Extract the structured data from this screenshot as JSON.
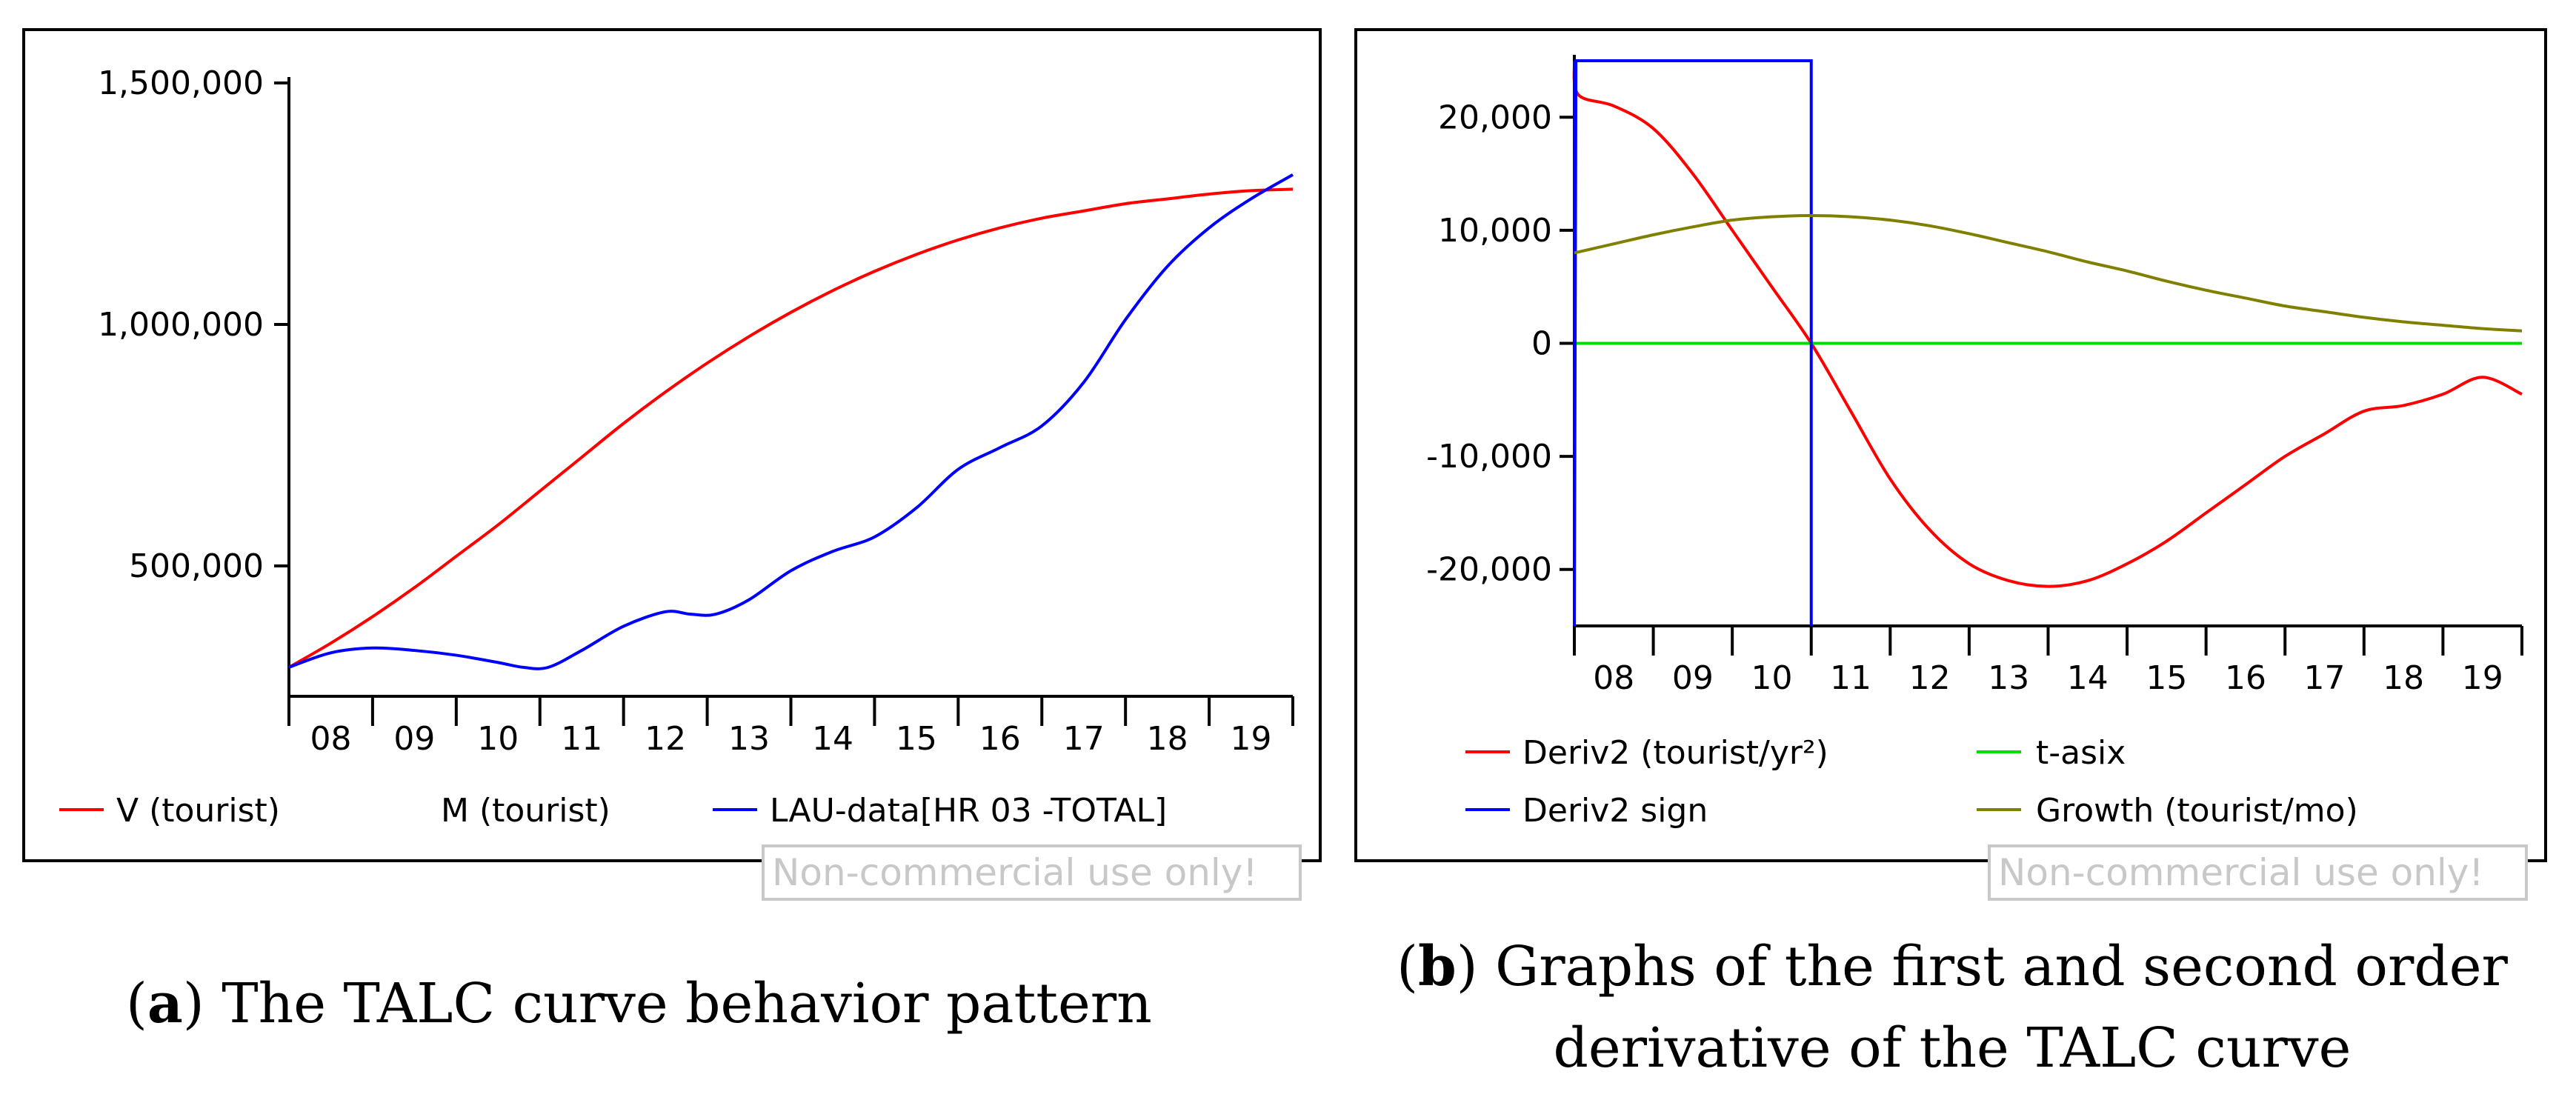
{
  "watermark": "Non-commercial use only!",
  "colors": {
    "red": "#ff0000",
    "blue": "#0000ff",
    "green": "#00dd00",
    "olive": "#808000"
  },
  "chart_data": [
    {
      "id": "a",
      "type": "line",
      "caption": {
        "letter": "a",
        "text": ") The TALC curve behavior pattern",
        "open": "("
      },
      "x_range": [
        2007.5,
        2019.5
      ],
      "ylim": [
        230000,
        1500000
      ],
      "xticks": [
        {
          "label": "08",
          "x": 2008
        },
        {
          "label": "09",
          "x": 2009
        },
        {
          "label": "10",
          "x": 2010
        },
        {
          "label": "11",
          "x": 2011
        },
        {
          "label": "12",
          "x": 2012
        },
        {
          "label": "13",
          "x": 2013
        },
        {
          "label": "14",
          "x": 2014
        },
        {
          "label": "15",
          "x": 2015
        },
        {
          "label": "16",
          "x": 2016
        },
        {
          "label": "17",
          "x": 2017
        },
        {
          "label": "18",
          "x": 2018
        },
        {
          "label": "19",
          "x": 2019
        }
      ],
      "yticks": [
        {
          "label": "500,000",
          "y": 500000
        },
        {
          "label": "1,000,000",
          "y": 1000000
        },
        {
          "label": "1,500,000",
          "y": 1500000
        }
      ],
      "series": [
        {
          "name": "V (tourist)",
          "color": "#ff0000",
          "x": [
            2007.5,
            2008,
            2008.5,
            2009,
            2009.5,
            2010,
            2010.5,
            2011,
            2011.5,
            2012,
            2012.5,
            2013,
            2013.5,
            2014,
            2014.5,
            2015,
            2015.5,
            2016,
            2016.5,
            2017,
            2017.5,
            2018,
            2018.5,
            2019,
            2019.5
          ],
          "y": [
            290000,
            340000,
            395000,
            455000,
            520000,
            585000,
            655000,
            725000,
            795000,
            860000,
            920000,
            975000,
            1025000,
            1070000,
            1110000,
            1145000,
            1175000,
            1200000,
            1220000,
            1235000,
            1250000,
            1260000,
            1270000,
            1277000,
            1280000
          ]
        },
        {
          "name": "M (tourist)",
          "color": "#ffffff",
          "x": [],
          "y": []
        },
        {
          "name": "LAU-data[HR 03 -TOTAL]",
          "color": "#0000ff",
          "x": [
            2007.5,
            2008,
            2008.5,
            2009,
            2009.5,
            2010,
            2010.3,
            2010.6,
            2011,
            2011.5,
            2012,
            2012.3,
            2012.6,
            2013,
            2013.5,
            2014,
            2014.5,
            2015,
            2015.5,
            2016,
            2016.5,
            2017,
            2017.5,
            2018,
            2018.5,
            2019,
            2019.5
          ],
          "y": [
            290000,
            320000,
            330000,
            325000,
            315000,
            300000,
            290000,
            290000,
            325000,
            375000,
            405000,
            400000,
            400000,
            430000,
            490000,
            530000,
            560000,
            620000,
            700000,
            745000,
            790000,
            880000,
            1010000,
            1120000,
            1200000,
            1260000,
            1310000
          ]
        }
      ]
    },
    {
      "id": "b",
      "type": "line",
      "caption": {
        "open": "(",
        "letter": "b",
        "line1": ") Graphs of the first and second order",
        "line2": "derivative of the TALC curve"
      },
      "x_range": [
        2007.5,
        2019.5
      ],
      "ylim": [
        -25000,
        25000
      ],
      "xticks": [
        {
          "label": "08",
          "x": 2008
        },
        {
          "label": "09",
          "x": 2009
        },
        {
          "label": "10",
          "x": 2010
        },
        {
          "label": "11",
          "x": 2011
        },
        {
          "label": "12",
          "x": 2012
        },
        {
          "label": "13",
          "x": 2013
        },
        {
          "label": "14",
          "x": 2014
        },
        {
          "label": "15",
          "x": 2015
        },
        {
          "label": "16",
          "x": 2016
        },
        {
          "label": "17",
          "x": 2017
        },
        {
          "label": "18",
          "x": 2018
        },
        {
          "label": "19",
          "x": 2019
        }
      ],
      "yticks": [
        {
          "label": "20,000",
          "y": 20000
        },
        {
          "label": "10,000",
          "y": 10000
        },
        {
          "label": "0",
          "y": 0
        },
        {
          "label": "-10,000",
          "y": -10000
        },
        {
          "label": "-20,000",
          "y": -20000
        }
      ],
      "series": [
        {
          "name": "Deriv2 (tourist/yr²)",
          "color": "#ff0000",
          "x": [
            2007.5,
            2007.55,
            2008,
            2008.5,
            2009,
            2009.5,
            2010,
            2010.5,
            2011,
            2011.5,
            2012,
            2012.5,
            2013,
            2013.5,
            2014,
            2014.5,
            2015,
            2015.5,
            2016,
            2016.5,
            2017,
            2017.5,
            2018,
            2018.5,
            2019,
            2019.5
          ],
          "y": [
            25000,
            22000,
            21000,
            19000,
            15000,
            10000,
            5000,
            0,
            -6000,
            -12000,
            -16500,
            -19500,
            -21000,
            -21500,
            -21000,
            -19500,
            -17500,
            -15000,
            -12500,
            -10000,
            -8000,
            -6000,
            -5500,
            -4500,
            -3000,
            -4500
          ]
        },
        {
          "name": "t-asix",
          "color": "#00dd00",
          "x": [
            2007.5,
            2019.5
          ],
          "y": [
            0,
            0
          ]
        },
        {
          "name": "Deriv2 sign",
          "color": "#0000ff",
          "x": [
            2007.5,
            2007.5,
            2007.52,
            2010.5,
            2010.5
          ],
          "y": [
            25000,
            -25000,
            25000,
            25000,
            -25000
          ]
        },
        {
          "name": "Growth (tourist/mo)",
          "color": "#808000",
          "x": [
            2007.5,
            2008,
            2008.5,
            2009,
            2009.5,
            2010,
            2010.5,
            2011,
            2011.5,
            2012,
            2012.5,
            2013,
            2013.5,
            2014,
            2014.5,
            2015,
            2015.5,
            2016,
            2016.5,
            2017,
            2017.5,
            2018,
            2018.5,
            2019,
            2019.5
          ],
          "y": [
            8000,
            8800,
            9600,
            10300,
            10900,
            11200,
            11300,
            11200,
            10900,
            10400,
            9700,
            8900,
            8100,
            7200,
            6400,
            5500,
            4700,
            4000,
            3300,
            2800,
            2300,
            1900,
            1600,
            1300,
            1100
          ]
        }
      ]
    }
  ]
}
